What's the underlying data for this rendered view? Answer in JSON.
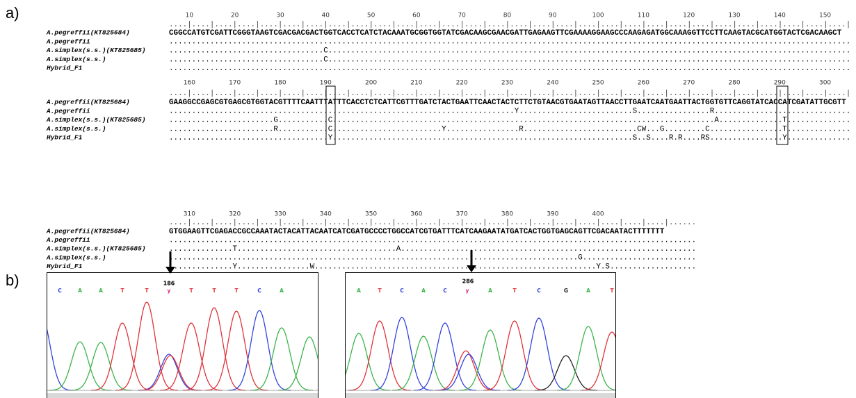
{
  "panel_labels": [
    "a)",
    "b)"
  ],
  "alignment": {
    "blocks": [
      {
        "ruler_numbers": [
          10,
          20,
          30,
          40,
          50,
          60,
          70,
          80,
          90,
          100,
          110,
          120,
          130,
          140,
          150
        ],
        "ruler": "....|....|....|....|....|....|....|....|....|....|....|....|....|....|....|....|....|....|....|....|....|....|....|....|....|....|....|....|....|....|",
        "rows": [
          {
            "name": "A.pegreffii(KT825684)",
            "sequence": "CGGCCATGTCGATTCGGGTAAGTCGACGACGACTGGTCACCTCATCTACAAATGCGGTGGTATCGACAAGCGAACGATTGAGAAGTTCGAAAAGGAAGCCCAAGAGATGGCAAAGGTTCCTTCAAGTACGCATGGTACTCGACAAGCT"
          },
          {
            "name": "A.pegreffii",
            "sequence": "......................................................................................................................................................"
          },
          {
            "name": "A.simplex(s.s.)(KT825685)",
            "sequence": "..................................C..................................................................................................................."
          },
          {
            "name": "A.simplex(s.s.)",
            "sequence": "..................................C..................................................................................................................."
          },
          {
            "name": "Hybrid_F1",
            "sequence": "......................................................................................................................................................"
          }
        ]
      },
      {
        "ruler_numbers": [
          160,
          170,
          180,
          190,
          200,
          210,
          220,
          230,
          240,
          250,
          260,
          270,
          280,
          290,
          300
        ],
        "ruler": "....|....|....|....|....|....|....|....|....|....|....|....|....|....|....|....|....|....|....|....|....|....|....|....|....|....|....|....|....|....|",
        "rows": [
          {
            "name": "A.pegreffii(KT825684)",
            "sequence": "GAAGGCCGAGCGTGAGCGTGGTACGTTTTCAATTTATTTCACCTCTCATTCGTTTGATCTACTGAATTCAACTACTCTTCTGTAACGTGAATAGTTAACCTTGAATCAATGAATTACTGGTGTTCAGGTATCACCATCGATATTGCGTT"
          },
          {
            "name": "A.pegreffii",
            "sequence": "............................................................................Y.........................S................R.............................."
          },
          {
            "name": "A.simplex(s.s.)(KT825685)",
            "sequence": ".......................G...........C....................................................................................A..............T.............."
          },
          {
            "name": "A.simplex(s.s.)",
            "sequence": ".......................R...........C........................Y................R.........................CW...G.........C................T.............."
          },
          {
            "name": "Hybrid_F1",
            "sequence": "...................................Y..................................................................S..S....R.R....RS................Y.............."
          }
        ]
      },
      {
        "ruler_numbers": [
          310,
          320,
          330,
          340,
          350,
          360,
          370,
          380,
          390,
          400
        ],
        "ruler": "....|....|....|....|....|....|....|....|....|....|....|....|....|....|....|....|....|....|....|....|....|....|......",
        "rows": [
          {
            "name": "A.pegreffii(KT825684)",
            "sequence": "GTGGAAGTTCGAGACCGCCAAATACTACATTACAATCATCGATGCCCCTGGCCATCGTGATTTCATCAAGAATATGATCACTGGTGAGCAGTTCGACAATACTTTTTTT"
          },
          {
            "name": "A.pegreffii",
            "sequence": "...................................................................................................................."
          },
          {
            "name": "A.simplex(s.s.)(KT825685)",
            "sequence": "..............T...................................A................................................................."
          },
          {
            "name": "A.simplex(s.s.)",
            "sequence": "..........................................................................................G........................."
          },
          {
            "name": "Hybrid_F1",
            "sequence": "..............Y................W..............................................................Y.S..................."
          }
        ]
      }
    ]
  },
  "chromatograms": [
    {
      "position": 186,
      "bases": [
        "C",
        "A",
        "A",
        "T",
        "T",
        "y",
        "T",
        "T",
        "T",
        "C",
        "A"
      ]
    },
    {
      "position": 286,
      "bases": [
        "A",
        "T",
        "C",
        "A",
        "C",
        "y",
        "A",
        "T",
        "C",
        "G",
        "A",
        "T"
      ]
    }
  ]
}
